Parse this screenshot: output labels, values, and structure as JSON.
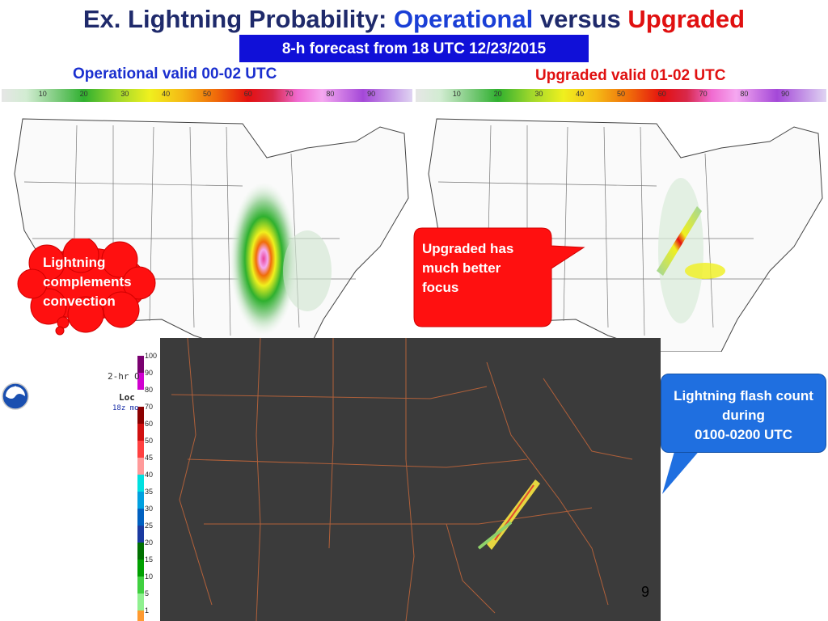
{
  "header": {
    "title_part1": "Ex. Lightning Probability:",
    "title_part2": "Operational",
    "title_part3": "versus",
    "title_part4": "Upgraded",
    "subtitle": "8-h forecast from 18 UTC  12/23/2015"
  },
  "panels": {
    "operational_label": "Operational valid 00-02 UTC",
    "upgraded_label": "Upgraded valid 01-02 UTC"
  },
  "colorbar": {
    "ticks": [
      "10",
      "20",
      "30",
      "40",
      "50",
      "60",
      "70",
      "80",
      "90"
    ]
  },
  "callouts": {
    "cloud_line1": "Lightning",
    "cloud_line2": "complements",
    "cloud_line3": "convection",
    "upgraded_line1": "Upgraded has",
    "upgraded_line2": "much better",
    "upgraded_line3": "focus",
    "flash_line1": "Lightning flash count",
    "flash_line2": "during",
    "flash_line3": "0100-0200 UTC"
  },
  "lightning_legend": {
    "levels": [
      "100",
      "90",
      "80",
      "70",
      "60",
      "50",
      "45",
      "40",
      "35",
      "30",
      "25",
      "20",
      "15",
      "10",
      "5",
      "1"
    ],
    "colors": [
      "#7a0070",
      "#d000d0",
      "#ffffff",
      "#8b0000",
      "#d01010",
      "#ff4040",
      "#ff9a9a",
      "#00e0e0",
      "#00a0e0",
      "#0060c0",
      "#1a3aa0",
      "#007000",
      "#00a000",
      "#40d040",
      "#90f090",
      "#ff9a30"
    ]
  },
  "partial_headers": {
    "two_hr": "2-hr O",
    "loc": "Loc",
    "run": "18z mo"
  },
  "page_number": "9",
  "colors": {
    "title_dark": "#1f2a6b",
    "operational_blue": "#1a3fd6",
    "upgraded_red": "#e01010",
    "subtitle_bg": "#1010d8",
    "callout_red": "#ff1010",
    "callout_blue": "#1f6fe0",
    "satellite_bg": "#3b3b3b"
  }
}
